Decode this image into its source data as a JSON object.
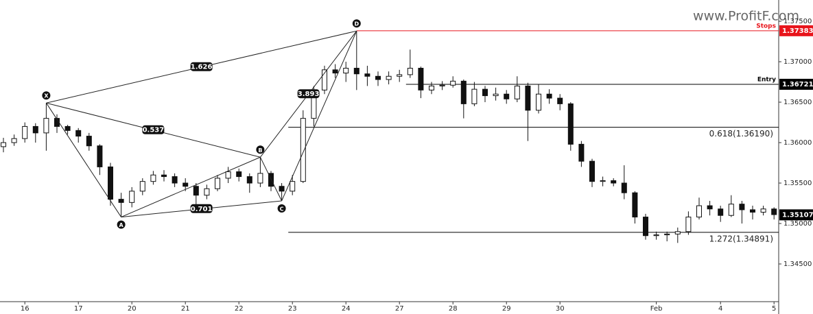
{
  "chart_data": {
    "type": "candlestick",
    "watermark": "www.ProfitF.com",
    "ylim": [
      1.34034,
      1.37763
    ],
    "yticks": [
      {
        "value": 1.345,
        "label": "1.34500"
      },
      {
        "value": 1.35,
        "label": "1.35000"
      },
      {
        "value": 1.355,
        "label": "1.35500"
      },
      {
        "value": 1.36,
        "label": "1.36000"
      },
      {
        "value": 1.365,
        "label": "1.36500"
      },
      {
        "value": 1.37,
        "label": "1.37000"
      },
      {
        "value": 1.375,
        "label": "1.37500"
      }
    ],
    "xticks": [
      {
        "value": 2,
        "label": "16"
      },
      {
        "value": 7,
        "label": "17"
      },
      {
        "value": 12,
        "label": "20"
      },
      {
        "value": 17,
        "label": "21"
      },
      {
        "value": 22,
        "label": "22"
      },
      {
        "value": 27,
        "label": "23"
      },
      {
        "value": 32,
        "label": "24"
      },
      {
        "value": 37,
        "label": "27"
      },
      {
        "value": 42,
        "label": "28"
      },
      {
        "value": 47,
        "label": "29"
      },
      {
        "value": 52,
        "label": "30"
      },
      {
        "value": 61,
        "label": "Feb"
      },
      {
        "value": 67,
        "label": "4"
      },
      {
        "value": 72,
        "label": "5"
      }
    ],
    "up_color": "#ffffff",
    "down_color": "#111111",
    "open": [
      1.3595,
      1.36,
      1.3605,
      1.362,
      1.3612,
      1.363,
      1.362,
      1.3615,
      1.3608,
      1.3596,
      1.357,
      1.353,
      1.3526,
      1.354,
      1.3552,
      1.356,
      1.3558,
      1.355,
      1.3546,
      1.3535,
      1.3543,
      1.3556,
      1.3564,
      1.3558,
      1.355,
      1.3562,
      1.3546,
      1.354,
      1.3552,
      1.363,
      1.3665,
      1.369,
      1.3686,
      1.3692,
      1.3685,
      1.3682,
      1.3678,
      1.3682,
      1.3684,
      1.3692,
      1.3665,
      1.367,
      1.3671,
      1.3676,
      1.3648,
      1.3666,
      1.3658,
      1.366,
      1.3654,
      1.367,
      1.364,
      1.366,
      1.3655,
      1.3648,
      1.3598,
      1.3577,
      1.3552,
      1.3553,
      1.355,
      1.3538,
      1.3508,
      1.3485,
      1.3486,
      1.3487,
      1.349,
      1.3508,
      1.3522,
      1.3518,
      1.351,
      1.3524,
      1.3517,
      1.3514,
      1.3518
    ],
    "high": [
      1.3606,
      1.361,
      1.3625,
      1.3624,
      1.3649,
      1.3635,
      1.3622,
      1.3618,
      1.3612,
      1.3598,
      1.3575,
      1.3538,
      1.3545,
      1.3556,
      1.3565,
      1.3566,
      1.3562,
      1.3556,
      1.355,
      1.3548,
      1.356,
      1.357,
      1.3568,
      1.3562,
      1.3582,
      1.3565,
      1.355,
      1.356,
      1.364,
      1.367,
      1.3695,
      1.3697,
      1.37,
      1.3738,
      1.3695,
      1.3688,
      1.3688,
      1.369,
      1.3715,
      1.3694,
      1.3675,
      1.3676,
      1.3682,
      1.3678,
      1.3675,
      1.367,
      1.3668,
      1.3665,
      1.3682,
      1.3674,
      1.3672,
      1.3666,
      1.366,
      1.365,
      1.3602,
      1.358,
      1.3558,
      1.3556,
      1.3572,
      1.354,
      1.3512,
      1.349,
      1.349,
      1.3495,
      1.3515,
      1.3532,
      1.3528,
      1.3522,
      1.3535,
      1.3528,
      1.3522,
      1.3522,
      1.352
    ],
    "low": [
      1.3588,
      1.3596,
      1.36,
      1.36,
      1.359,
      1.3612,
      1.361,
      1.36,
      1.359,
      1.356,
      1.3522,
      1.3508,
      1.352,
      1.3535,
      1.3548,
      1.3552,
      1.3545,
      1.354,
      1.3522,
      1.353,
      1.354,
      1.355,
      1.3552,
      1.3538,
      1.3545,
      1.354,
      1.3528,
      1.3535,
      1.355,
      1.362,
      1.366,
      1.368,
      1.3675,
      1.3665,
      1.367,
      1.367,
      1.3672,
      1.3675,
      1.368,
      1.3655,
      1.366,
      1.3665,
      1.3668,
      1.363,
      1.3645,
      1.365,
      1.3652,
      1.3648,
      1.365,
      1.3602,
      1.3636,
      1.3648,
      1.364,
      1.359,
      1.357,
      1.3545,
      1.3546,
      1.3546,
      1.353,
      1.35,
      1.348,
      1.348,
      1.3478,
      1.3476,
      1.3486,
      1.3505,
      1.351,
      1.3502,
      1.3508,
      1.35,
      1.3505,
      1.351,
      1.3505
    ],
    "close": [
      1.36,
      1.3605,
      1.362,
      1.3612,
      1.363,
      1.362,
      1.3615,
      1.3608,
      1.3596,
      1.357,
      1.353,
      1.3526,
      1.354,
      1.3552,
      1.356,
      1.3558,
      1.355,
      1.3546,
      1.3535,
      1.3543,
      1.3556,
      1.3564,
      1.3558,
      1.355,
      1.3562,
      1.3546,
      1.354,
      1.3552,
      1.363,
      1.3665,
      1.369,
      1.3686,
      1.3692,
      1.3685,
      1.3682,
      1.3678,
      1.3682,
      1.3684,
      1.3692,
      1.3665,
      1.367,
      1.3671,
      1.3676,
      1.3648,
      1.3666,
      1.3658,
      1.366,
      1.3654,
      1.367,
      1.364,
      1.366,
      1.3655,
      1.3648,
      1.3598,
      1.3577,
      1.3552,
      1.3553,
      1.355,
      1.3538,
      1.3508,
      1.3485,
      1.3486,
      1.3487,
      1.349,
      1.3508,
      1.3522,
      1.3518,
      1.351,
      1.3524,
      1.3517,
      1.3514,
      1.3518,
      1.3511
    ],
    "pattern": {
      "color": "#222222",
      "points": [
        {
          "label": "X",
          "index": 4,
          "price": 1.3649
        },
        {
          "label": "A",
          "index": 11,
          "price": 1.3508
        },
        {
          "label": "B",
          "index": 24,
          "price": 1.3582
        },
        {
          "label": "C",
          "index": 26,
          "price": 1.3528
        },
        {
          "label": "D",
          "index": 33,
          "price": 1.3738
        }
      ],
      "ratios": [
        {
          "label": "1.626",
          "from": 0,
          "to": 4
        },
        {
          "label": "0.537",
          "from": 0,
          "to": 2
        },
        {
          "label": "0.701",
          "from": 1,
          "to": 3
        },
        {
          "label": "3.893",
          "from": 2,
          "to": 4
        }
      ]
    },
    "levels": [
      {
        "name": "Stops",
        "value": 1.37383,
        "label": "1.37383",
        "color": "#e8141b"
      },
      {
        "name": "Entry",
        "value": 1.36721,
        "label": "1.36721",
        "color": "#000000"
      },
      {
        "value": 1.3619,
        "label": "0.618(1.36190)",
        "color": "#000000"
      },
      {
        "value": 1.34891,
        "label": "1.272(1.34891)",
        "color": "#000000"
      }
    ],
    "last_price": {
      "value": 1.35107,
      "label": "1.35107",
      "color": "#000000"
    }
  }
}
